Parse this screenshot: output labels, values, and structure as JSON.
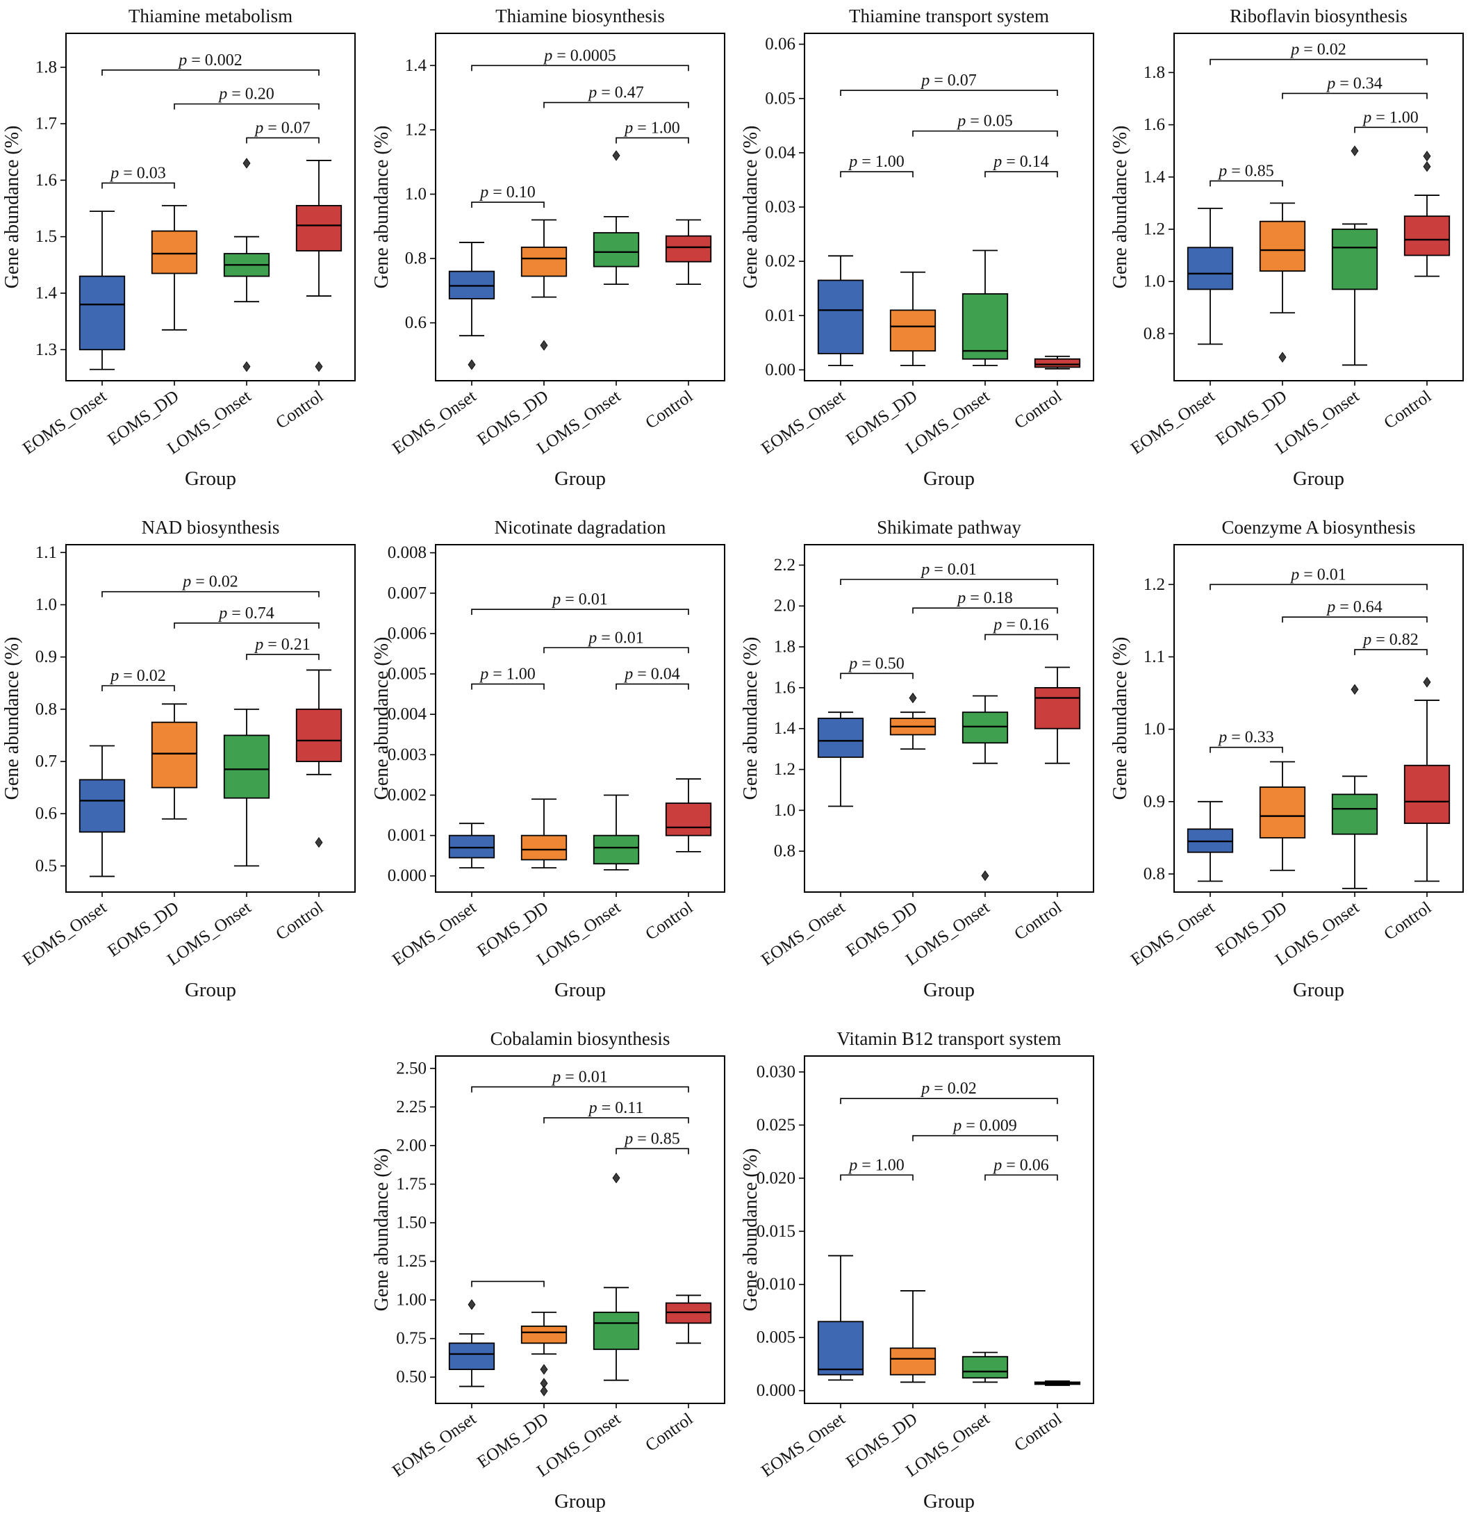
{
  "figure": {
    "groups": [
      "EOMS_Onset",
      "EOMS_DD",
      "LOMS_Onset",
      "Control"
    ],
    "group_colors": [
      "#3f68b2",
      "#ee8633",
      "#3fa14f",
      "#cb3e3e"
    ],
    "outlier_color": "#3b3b3b",
    "frame_color": "#000000",
    "xlabel": "Group",
    "ylabel": "Gene abundance (%)"
  },
  "chart_data": [
    {
      "type": "box",
      "title": "Thiamine metabolism",
      "xlabel": "Group",
      "ylabel": "Gene abundance (%)",
      "categories": [
        "EOMS_Onset",
        "EOMS_DD",
        "LOMS_Onset",
        "Control"
      ],
      "ylim": [
        1.245,
        1.86
      ],
      "yticks": [
        1.3,
        1.4,
        1.5,
        1.6,
        1.7,
        1.8
      ],
      "ytick_labels": [
        "1.3",
        "1.4",
        "1.5",
        "1.6",
        "1.7",
        "1.8"
      ],
      "boxes": [
        {
          "whislo": 1.265,
          "q1": 1.3,
          "med": 1.38,
          "q3": 1.43,
          "whishi": 1.545,
          "outliers": []
        },
        {
          "whislo": 1.335,
          "q1": 1.435,
          "med": 1.47,
          "q3": 1.51,
          "whishi": 1.555,
          "outliers": []
        },
        {
          "whislo": 1.385,
          "q1": 1.43,
          "med": 1.45,
          "q3": 1.47,
          "whishi": 1.5,
          "outliers": [
            1.63,
            1.27
          ]
        },
        {
          "whislo": 1.395,
          "q1": 1.475,
          "med": 1.52,
          "q3": 1.555,
          "whishi": 1.635,
          "outliers": [
            1.27
          ]
        }
      ],
      "brackets": [
        {
          "from": 0,
          "to": 3,
          "y": 1.795,
          "label": "p = 0.002"
        },
        {
          "from": 1,
          "to": 3,
          "y": 1.735,
          "label": "p = 0.20"
        },
        {
          "from": 2,
          "to": 3,
          "y": 1.675,
          "label": "p = 0.07"
        },
        {
          "from": 0,
          "to": 1,
          "y": 1.595,
          "label": "p = 0.03"
        }
      ]
    },
    {
      "type": "box",
      "title": "Thiamine biosynthesis",
      "xlabel": "Group",
      "ylabel": "Gene abundance (%)",
      "categories": [
        "EOMS_Onset",
        "EOMS_DD",
        "LOMS_Onset",
        "Control"
      ],
      "ylim": [
        0.42,
        1.5
      ],
      "yticks": [
        0.6,
        0.8,
        1.0,
        1.2,
        1.4
      ],
      "ytick_labels": [
        "0.6",
        "0.8",
        "1.0",
        "1.2",
        "1.4"
      ],
      "boxes": [
        {
          "whislo": 0.56,
          "q1": 0.675,
          "med": 0.715,
          "q3": 0.76,
          "whishi": 0.85,
          "outliers": [
            0.47
          ]
        },
        {
          "whislo": 0.68,
          "q1": 0.745,
          "med": 0.8,
          "q3": 0.835,
          "whishi": 0.92,
          "outliers": [
            0.53
          ]
        },
        {
          "whislo": 0.72,
          "q1": 0.775,
          "med": 0.82,
          "q3": 0.88,
          "whishi": 0.93,
          "outliers": [
            1.12
          ]
        },
        {
          "whislo": 0.72,
          "q1": 0.79,
          "med": 0.835,
          "q3": 0.87,
          "whishi": 0.92,
          "outliers": []
        }
      ],
      "brackets": [
        {
          "from": 0,
          "to": 3,
          "y": 1.4,
          "label": "p = 0.0005"
        },
        {
          "from": 1,
          "to": 3,
          "y": 1.285,
          "label": "p = 0.47"
        },
        {
          "from": 2,
          "to": 3,
          "y": 1.175,
          "label": "p = 1.00"
        },
        {
          "from": 0,
          "to": 1,
          "y": 0.975,
          "label": "p = 0.10"
        }
      ]
    },
    {
      "type": "box",
      "title": "Thiamine transport system",
      "xlabel": "Group",
      "ylabel": "Gene abundance (%)",
      "categories": [
        "EOMS_Onset",
        "EOMS_DD",
        "LOMS_Onset",
        "Control"
      ],
      "ylim": [
        -0.002,
        0.062
      ],
      "yticks": [
        0.0,
        0.01,
        0.02,
        0.03,
        0.04,
        0.05,
        0.06
      ],
      "ytick_labels": [
        "0.00",
        "0.01",
        "0.02",
        "0.03",
        "0.04",
        "0.05",
        "0.06"
      ],
      "boxes": [
        {
          "whislo": 0.0008,
          "q1": 0.003,
          "med": 0.011,
          "q3": 0.0165,
          "whishi": 0.021,
          "outliers": []
        },
        {
          "whislo": 0.0008,
          "q1": 0.0035,
          "med": 0.008,
          "q3": 0.011,
          "whishi": 0.018,
          "outliers": []
        },
        {
          "whislo": 0.0008,
          "q1": 0.002,
          "med": 0.0035,
          "q3": 0.014,
          "whishi": 0.022,
          "outliers": []
        },
        {
          "whislo": 0.0002,
          "q1": 0.0005,
          "med": 0.001,
          "q3": 0.002,
          "whishi": 0.0025,
          "outliers": []
        }
      ],
      "brackets": [
        {
          "from": 0,
          "to": 3,
          "y": 0.0515,
          "label": "p = 0.07"
        },
        {
          "from": 1,
          "to": 3,
          "y": 0.044,
          "label": "p = 0.05"
        },
        {
          "from": 0,
          "to": 1,
          "y": 0.0365,
          "label": "p = 1.00"
        },
        {
          "from": 2,
          "to": 3,
          "y": 0.0365,
          "label": "p = 0.14"
        }
      ]
    },
    {
      "type": "box",
      "title": "Riboflavin biosynthesis",
      "xlabel": "Group",
      "ylabel": "Gene abundance (%)",
      "categories": [
        "EOMS_Onset",
        "EOMS_DD",
        "LOMS_Onset",
        "Control"
      ],
      "ylim": [
        0.62,
        1.95
      ],
      "yticks": [
        0.8,
        1.0,
        1.2,
        1.4,
        1.6,
        1.8
      ],
      "ytick_labels": [
        "0.8",
        "1.0",
        "1.2",
        "1.4",
        "1.6",
        "1.8"
      ],
      "boxes": [
        {
          "whislo": 0.76,
          "q1": 0.97,
          "med": 1.03,
          "q3": 1.13,
          "whishi": 1.28,
          "outliers": []
        },
        {
          "whislo": 0.88,
          "q1": 1.04,
          "med": 1.12,
          "q3": 1.23,
          "whishi": 1.3,
          "outliers": [
            0.71
          ]
        },
        {
          "whislo": 0.68,
          "q1": 0.97,
          "med": 1.13,
          "q3": 1.2,
          "whishi": 1.22,
          "outliers": [
            1.5
          ]
        },
        {
          "whislo": 1.02,
          "q1": 1.1,
          "med": 1.16,
          "q3": 1.25,
          "whishi": 1.33,
          "outliers": [
            1.48,
            1.44
          ]
        }
      ],
      "brackets": [
        {
          "from": 0,
          "to": 3,
          "y": 1.85,
          "label": "p = 0.02"
        },
        {
          "from": 1,
          "to": 3,
          "y": 1.72,
          "label": "p = 0.34"
        },
        {
          "from": 2,
          "to": 3,
          "y": 1.59,
          "label": "p = 1.00"
        },
        {
          "from": 0,
          "to": 1,
          "y": 1.385,
          "label": "p = 0.85"
        }
      ]
    },
    {
      "type": "box",
      "title": "NAD biosynthesis",
      "xlabel": "Group",
      "ylabel": "Gene abundance (%)",
      "categories": [
        "EOMS_Onset",
        "EOMS_DD",
        "LOMS_Onset",
        "Control"
      ],
      "ylim": [
        0.45,
        1.115
      ],
      "yticks": [
        0.5,
        0.6,
        0.7,
        0.8,
        0.9,
        1.0,
        1.1
      ],
      "ytick_labels": [
        "0.5",
        "0.6",
        "0.7",
        "0.8",
        "0.9",
        "1.0",
        "1.1"
      ],
      "boxes": [
        {
          "whislo": 0.48,
          "q1": 0.565,
          "med": 0.625,
          "q3": 0.665,
          "whishi": 0.73,
          "outliers": []
        },
        {
          "whislo": 0.59,
          "q1": 0.65,
          "med": 0.715,
          "q3": 0.775,
          "whishi": 0.81,
          "outliers": []
        },
        {
          "whislo": 0.5,
          "q1": 0.63,
          "med": 0.685,
          "q3": 0.75,
          "whishi": 0.8,
          "outliers": []
        },
        {
          "whislo": 0.675,
          "q1": 0.7,
          "med": 0.74,
          "q3": 0.8,
          "whishi": 0.875,
          "outliers": [
            0.545
          ]
        }
      ],
      "brackets": [
        {
          "from": 0,
          "to": 3,
          "y": 1.025,
          "label": "p = 0.02"
        },
        {
          "from": 1,
          "to": 3,
          "y": 0.965,
          "label": "p = 0.74"
        },
        {
          "from": 2,
          "to": 3,
          "y": 0.905,
          "label": "p = 0.21"
        },
        {
          "from": 0,
          "to": 1,
          "y": 0.845,
          "label": "p = 0.02"
        }
      ]
    },
    {
      "type": "box",
      "title": "Nicotinate dagradation",
      "xlabel": "Group",
      "ylabel": "Gene abundance (%)",
      "categories": [
        "EOMS_Onset",
        "EOMS_DD",
        "LOMS_Onset",
        "Control"
      ],
      "ylim": [
        -0.0004,
        0.0082
      ],
      "yticks": [
        0.0,
        0.001,
        0.002,
        0.003,
        0.004,
        0.005,
        0.006,
        0.007,
        0.008
      ],
      "ytick_labels": [
        "0.000",
        "0.001",
        "0.002",
        "0.003",
        "0.004",
        "0.005",
        "0.006",
        "0.007",
        "0.008"
      ],
      "boxes": [
        {
          "whislo": 0.0002,
          "q1": 0.00045,
          "med": 0.0007,
          "q3": 0.001,
          "whishi": 0.0013,
          "outliers": []
        },
        {
          "whislo": 0.0002,
          "q1": 0.0004,
          "med": 0.00065,
          "q3": 0.001,
          "whishi": 0.0019,
          "outliers": []
        },
        {
          "whislo": 0.00015,
          "q1": 0.0003,
          "med": 0.0007,
          "q3": 0.001,
          "whishi": 0.002,
          "outliers": []
        },
        {
          "whislo": 0.0006,
          "q1": 0.001,
          "med": 0.0012,
          "q3": 0.0018,
          "whishi": 0.0024,
          "outliers": []
        }
      ],
      "brackets": [
        {
          "from": 0,
          "to": 3,
          "y": 0.0066,
          "label": "p = 0.01"
        },
        {
          "from": 1,
          "to": 3,
          "y": 0.00565,
          "label": "p = 0.01"
        },
        {
          "from": 0,
          "to": 1,
          "y": 0.00475,
          "label": "p = 1.00"
        },
        {
          "from": 2,
          "to": 3,
          "y": 0.00475,
          "label": "p = 0.04"
        }
      ]
    },
    {
      "type": "box",
      "title": "Shikimate pathway",
      "xlabel": "Group",
      "ylabel": "Gene abundance (%)",
      "categories": [
        "EOMS_Onset",
        "EOMS_DD",
        "LOMS_Onset",
        "Control"
      ],
      "ylim": [
        0.6,
        2.3
      ],
      "yticks": [
        0.8,
        1.0,
        1.2,
        1.4,
        1.6,
        1.8,
        2.0,
        2.2
      ],
      "ytick_labels": [
        "0.8",
        "1.0",
        "1.2",
        "1.4",
        "1.6",
        "1.8",
        "2.0",
        "2.2"
      ],
      "boxes": [
        {
          "whislo": 1.02,
          "q1": 1.26,
          "med": 1.34,
          "q3": 1.45,
          "whishi": 1.48,
          "outliers": []
        },
        {
          "whislo": 1.3,
          "q1": 1.37,
          "med": 1.41,
          "q3": 1.45,
          "whishi": 1.48,
          "outliers": [
            1.55
          ]
        },
        {
          "whislo": 1.23,
          "q1": 1.33,
          "med": 1.41,
          "q3": 1.48,
          "whishi": 1.56,
          "outliers": [
            0.68
          ]
        },
        {
          "whislo": 1.23,
          "q1": 1.4,
          "med": 1.55,
          "q3": 1.6,
          "whishi": 1.7,
          "outliers": []
        }
      ],
      "brackets": [
        {
          "from": 0,
          "to": 3,
          "y": 2.13,
          "label": "p = 0.01"
        },
        {
          "from": 1,
          "to": 3,
          "y": 1.99,
          "label": "p = 0.18"
        },
        {
          "from": 2,
          "to": 3,
          "y": 1.86,
          "label": "p = 0.16"
        },
        {
          "from": 0,
          "to": 1,
          "y": 1.67,
          "label": "p = 0.50"
        }
      ]
    },
    {
      "type": "box",
      "title": "Coenzyme A biosynthesis",
      "xlabel": "Group",
      "ylabel": "Gene abundance (%)",
      "categories": [
        "EOMS_Onset",
        "EOMS_DD",
        "LOMS_Onset",
        "Control"
      ],
      "ylim": [
        0.775,
        1.255
      ],
      "yticks": [
        0.8,
        0.9,
        1.0,
        1.1,
        1.2
      ],
      "ytick_labels": [
        "0.8",
        "0.9",
        "1.0",
        "1.1",
        "1.2"
      ],
      "boxes": [
        {
          "whislo": 0.79,
          "q1": 0.83,
          "med": 0.845,
          "q3": 0.862,
          "whishi": 0.9,
          "outliers": []
        },
        {
          "whislo": 0.805,
          "q1": 0.85,
          "med": 0.88,
          "q3": 0.92,
          "whishi": 0.955,
          "outliers": []
        },
        {
          "whislo": 0.78,
          "q1": 0.855,
          "med": 0.89,
          "q3": 0.91,
          "whishi": 0.935,
          "outliers": [
            1.055
          ]
        },
        {
          "whislo": 0.79,
          "q1": 0.87,
          "med": 0.9,
          "q3": 0.95,
          "whishi": 1.04,
          "outliers": [
            1.065
          ]
        }
      ],
      "brackets": [
        {
          "from": 0,
          "to": 3,
          "y": 1.2,
          "label": "p = 0.01"
        },
        {
          "from": 1,
          "to": 3,
          "y": 1.155,
          "label": "p = 0.64"
        },
        {
          "from": 2,
          "to": 3,
          "y": 1.11,
          "label": "p = 0.82"
        },
        {
          "from": 0,
          "to": 1,
          "y": 0.975,
          "label": "p = 0.33"
        }
      ]
    },
    {
      "type": "box",
      "title": "Cobalamin biosynthesis",
      "xlabel": "Group",
      "ylabel": "Gene abundance (%)",
      "categories": [
        "EOMS_Onset",
        "EOMS_DD",
        "LOMS_Onset",
        "Control"
      ],
      "ylim": [
        0.33,
        2.58
      ],
      "yticks": [
        0.5,
        0.75,
        1.0,
        1.25,
        1.5,
        1.75,
        2.0,
        2.25,
        2.5
      ],
      "ytick_labels": [
        "0.50",
        "0.75",
        "1.00",
        "1.25",
        "1.50",
        "1.75",
        "2.00",
        "2.25",
        "2.50"
      ],
      "boxes": [
        {
          "whislo": 0.44,
          "q1": 0.55,
          "med": 0.65,
          "q3": 0.72,
          "whishi": 0.78,
          "outliers": [
            0.97
          ]
        },
        {
          "whislo": 0.65,
          "q1": 0.72,
          "med": 0.79,
          "q3": 0.83,
          "whishi": 0.92,
          "outliers": [
            0.55,
            0.46,
            0.41
          ]
        },
        {
          "whislo": 0.48,
          "q1": 0.68,
          "med": 0.85,
          "q3": 0.92,
          "whishi": 1.08,
          "outliers": [
            1.79
          ]
        },
        {
          "whislo": 0.72,
          "q1": 0.85,
          "med": 0.92,
          "q3": 0.98,
          "whishi": 1.03,
          "outliers": []
        }
      ],
      "brackets": [
        {
          "from": 0,
          "to": 3,
          "y": 2.38,
          "label": "p = 0.01"
        },
        {
          "from": 1,
          "to": 3,
          "y": 2.18,
          "label": "p = 0.11"
        },
        {
          "from": 2,
          "to": 3,
          "y": 1.98,
          "label": "p = 0.85"
        },
        {
          "from": 0,
          "to": 1,
          "y": 1.12,
          "label": ""
        }
      ]
    },
    {
      "type": "box",
      "title": "Vitamin B12 transport system",
      "xlabel": "Group",
      "ylabel": "Gene abundance (%)",
      "categories": [
        "EOMS_Onset",
        "EOMS_DD",
        "LOMS_Onset",
        "Control"
      ],
      "ylim": [
        -0.0012,
        0.0315
      ],
      "yticks": [
        0.0,
        0.005,
        0.01,
        0.015,
        0.02,
        0.025,
        0.03
      ],
      "ytick_labels": [
        "0.000",
        "0.005",
        "0.010",
        "0.015",
        "0.020",
        "0.025",
        "0.030"
      ],
      "boxes": [
        {
          "whislo": 0.001,
          "q1": 0.0015,
          "med": 0.002,
          "q3": 0.0065,
          "whishi": 0.0127,
          "outliers": []
        },
        {
          "whislo": 0.0008,
          "q1": 0.0015,
          "med": 0.003,
          "q3": 0.004,
          "whishi": 0.0094,
          "outliers": []
        },
        {
          "whislo": 0.0008,
          "q1": 0.0012,
          "med": 0.0018,
          "q3": 0.0032,
          "whishi": 0.0036,
          "outliers": []
        },
        {
          "whislo": 0.0005,
          "q1": 0.0006,
          "med": 0.0007,
          "q3": 0.0008,
          "whishi": 0.0009,
          "outliers": []
        }
      ],
      "brackets": [
        {
          "from": 0,
          "to": 3,
          "y": 0.0275,
          "label": "p = 0.02"
        },
        {
          "from": 1,
          "to": 3,
          "y": 0.024,
          "label": "p = 0.009"
        },
        {
          "from": 0,
          "to": 1,
          "y": 0.0203,
          "label": "p = 1.00"
        },
        {
          "from": 2,
          "to": 3,
          "y": 0.0203,
          "label": "p = 0.06"
        }
      ]
    }
  ]
}
